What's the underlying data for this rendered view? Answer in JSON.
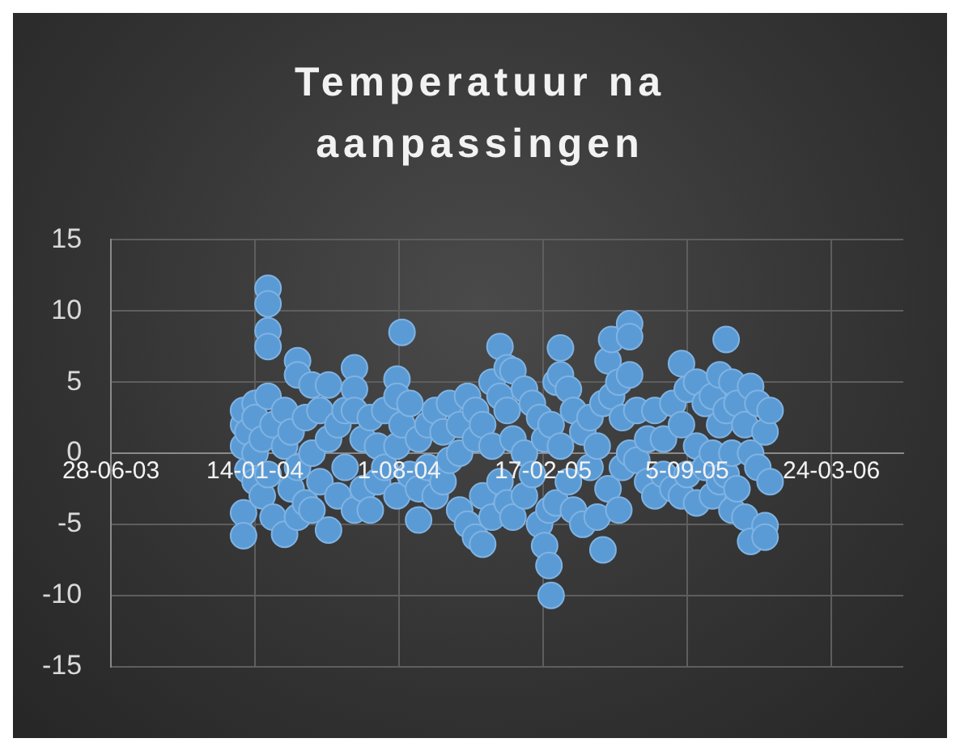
{
  "chart_data": {
    "type": "scatter",
    "title": "Temperatuur na aanpassingen",
    "x": [
      "2003-12-29",
      "2003-12-29",
      "2003-12-29",
      "2003-12-29",
      "2003-12-29",
      "2004-01-04",
      "2004-01-04",
      "2004-01-14",
      "2004-01-14",
      "2004-01-14",
      "2004-01-14",
      "2004-01-24",
      "2004-01-24",
      "2004-02-01",
      "2004-02-01",
      "2004-02-01",
      "2004-02-01",
      "2004-02-01",
      "2004-02-01",
      "2004-02-08",
      "2004-02-08",
      "2004-02-24",
      "2004-02-24",
      "2004-02-24",
      "2004-03-04",
      "2004-03-04",
      "2004-03-13",
      "2004-03-13",
      "2004-03-13",
      "2004-03-13",
      "2004-03-24",
      "2004-03-24",
      "2004-04-02",
      "2004-04-02",
      "2004-04-02",
      "2004-04-13",
      "2004-04-13",
      "2004-04-25",
      "2004-04-25",
      "2004-04-25",
      "2004-05-08",
      "2004-05-08",
      "2004-05-18",
      "2004-05-18",
      "2004-05-31",
      "2004-05-31",
      "2004-05-31",
      "2004-05-31",
      "2004-06-12",
      "2004-06-12",
      "2004-06-22",
      "2004-06-22",
      "2004-07-02",
      "2004-07-02",
      "2004-07-12",
      "2004-07-12",
      "2004-07-29",
      "2004-07-29",
      "2004-07-29",
      "2004-07-29",
      "2004-08-05",
      "2004-08-05",
      "2004-08-16",
      "2004-08-16",
      "2004-08-28",
      "2004-08-28",
      "2004-08-28",
      "2004-09-10",
      "2004-09-10",
      "2004-09-20",
      "2004-09-20",
      "2004-10-01",
      "2004-10-01",
      "2004-10-10",
      "2004-10-10",
      "2004-10-24",
      "2004-10-24",
      "2004-10-24",
      "2004-11-04",
      "2004-11-04",
      "2004-11-15",
      "2004-11-15",
      "2004-11-15",
      "2004-11-25",
      "2004-11-25",
      "2004-11-25",
      "2004-12-08",
      "2004-12-08",
      "2004-12-08",
      "2004-12-19",
      "2004-12-19",
      "2004-12-19",
      "2004-12-29",
      "2004-12-29",
      "2004-12-29",
      "2005-01-06",
      "2005-01-06",
      "2005-01-06",
      "2005-01-22",
      "2005-01-22",
      "2005-01-22",
      "2005-02-02",
      "2005-02-02",
      "2005-02-12",
      "2005-02-12",
      "2005-02-19",
      "2005-02-19",
      "2005-02-25",
      "2005-02-25",
      "2005-02-28",
      "2005-02-28",
      "2005-03-07",
      "2005-03-07",
      "2005-03-13",
      "2005-03-13",
      "2005-03-13",
      "2005-03-24",
      "2005-03-24",
      "2005-03-31",
      "2005-03-31",
      "2005-04-13",
      "2005-04-13",
      "2005-04-23",
      "2005-04-23",
      "2005-05-03",
      "2005-05-03",
      "2005-05-11",
      "2005-05-11",
      "2005-05-18",
      "2005-05-18",
      "2005-05-23",
      "2005-05-23",
      "2005-06-02",
      "2005-06-02",
      "2005-06-07",
      "2005-06-07",
      "2005-06-17",
      "2005-06-17",
      "2005-06-17",
      "2005-06-17",
      "2005-06-27",
      "2005-06-27",
      "2005-07-12",
      "2005-07-12",
      "2005-07-22",
      "2005-07-22",
      "2005-08-03",
      "2005-08-03",
      "2005-08-16",
      "2005-08-16",
      "2005-08-28",
      "2005-08-28",
      "2005-08-28",
      "2005-09-05",
      "2005-09-05",
      "2005-09-18",
      "2005-09-18",
      "2005-09-18",
      "2005-09-30",
      "2005-09-30",
      "2005-10-10",
      "2005-10-10",
      "2005-10-10",
      "2005-10-20",
      "2005-10-20",
      "2005-10-20",
      "2005-10-29",
      "2005-10-29",
      "2005-10-29",
      "2005-11-06",
      "2005-11-06",
      "2005-11-06",
      "2005-11-13",
      "2005-11-13",
      "2005-11-24",
      "2005-11-24",
      "2005-12-02",
      "2005-12-02",
      "2005-12-02",
      "2005-12-12",
      "2005-12-12",
      "2005-12-22",
      "2005-12-22",
      "2005-12-22",
      "2005-12-29",
      "2005-12-29"
    ],
    "series": [
      {
        "color": "#5b9bd5",
        "values": [
          -4.2,
          -5.8,
          0.5,
          2.0,
          3.0,
          1.5,
          -1.2,
          3.5,
          2.5,
          -2.0,
          0,
          1.0,
          -3.0,
          11.6,
          10.5,
          8.6,
          7.5,
          4.0,
          -1.5,
          2.0,
          -4.5,
          -5.7,
          0.5,
          3.0,
          -2.5,
          1.5,
          6.5,
          5.5,
          -1.0,
          -4.5,
          2.5,
          -3.5,
          4.8,
          0.0,
          -4.0,
          3.0,
          -2.0,
          4.8,
          1.0,
          -5.4,
          2.0,
          -3.0,
          3.0,
          -1.0,
          6.0,
          4.5,
          3.0,
          -4.0,
          1.0,
          -2.5,
          2.5,
          -4.0,
          0.5,
          -2.0,
          3.0,
          -1.0,
          5.2,
          4.0,
          0.5,
          -3.0,
          8.5,
          2.0,
          3.5,
          -1.5,
          1.0,
          -4.7,
          -2.5,
          2.0,
          -1.0,
          3.0,
          -3.0,
          1.5,
          -2.0,
          3.5,
          -0.5,
          2.0,
          -4.0,
          0.0,
          4.0,
          -5.0,
          3.0,
          -5.9,
          1.0,
          2.0,
          -6.4,
          -3.0,
          5.0,
          -4.5,
          0.5,
          7.5,
          4.0,
          -2.0,
          6.0,
          3.0,
          -3.5,
          5.8,
          1.0,
          -4.5,
          4.5,
          0.0,
          -3.0,
          3.5,
          -1.5,
          2.5,
          -5.0,
          -6.5,
          1.0,
          -7.9,
          -4.0,
          -10.0,
          2.0,
          5.0,
          -3.5,
          7.4,
          5.5,
          0.5,
          4.5,
          -2.0,
          3.0,
          -4.0,
          1.5,
          -5.0,
          2.5,
          -1.0,
          0.5,
          -4.5,
          -6.8,
          3.5,
          6.5,
          -2.5,
          8.0,
          4.0,
          5.0,
          -4.0,
          2.5,
          -1.0,
          9.1,
          8.2,
          5.5,
          0.0,
          3.0,
          -0.5,
          1.0,
          -2.0,
          3.0,
          -3.0,
          1.0,
          -1.5,
          3.5,
          -2.5,
          6.3,
          2.0,
          -3.0,
          4.5,
          -1.5,
          5.0,
          0.5,
          -3.5,
          3.5,
          -1.0,
          4.0,
          0.0,
          -3.0,
          5.5,
          2.0,
          -2.0,
          8.0,
          3.0,
          -1.5,
          5.0,
          0.0,
          -4.0,
          3.5,
          -2.5,
          2.0,
          -4.5,
          4.7,
          -6.2,
          0.0,
          3.5,
          -1.0,
          -5.1,
          -5.9,
          1.5,
          3.0,
          -2.0
        ]
      }
    ],
    "xlim": [
      "2003-06-28",
      "2006-07-02"
    ],
    "xticks": [
      {
        "value": "2003-06-28",
        "label": "28-06-03"
      },
      {
        "value": "2004-01-14",
        "label": "14-01-04"
      },
      {
        "value": "2004-08-01",
        "label": "1-08-04"
      },
      {
        "value": "2005-02-17",
        "label": "17-02-05"
      },
      {
        "value": "2005-09-05",
        "label": "5-09-05"
      },
      {
        "value": "2006-03-24",
        "label": "24-03-06"
      }
    ],
    "ylim": [
      -15,
      15
    ],
    "yticks": [
      -15,
      -10,
      -5,
      0,
      5,
      10,
      15
    ],
    "grid": true,
    "legend": false,
    "marker": "circle"
  }
}
